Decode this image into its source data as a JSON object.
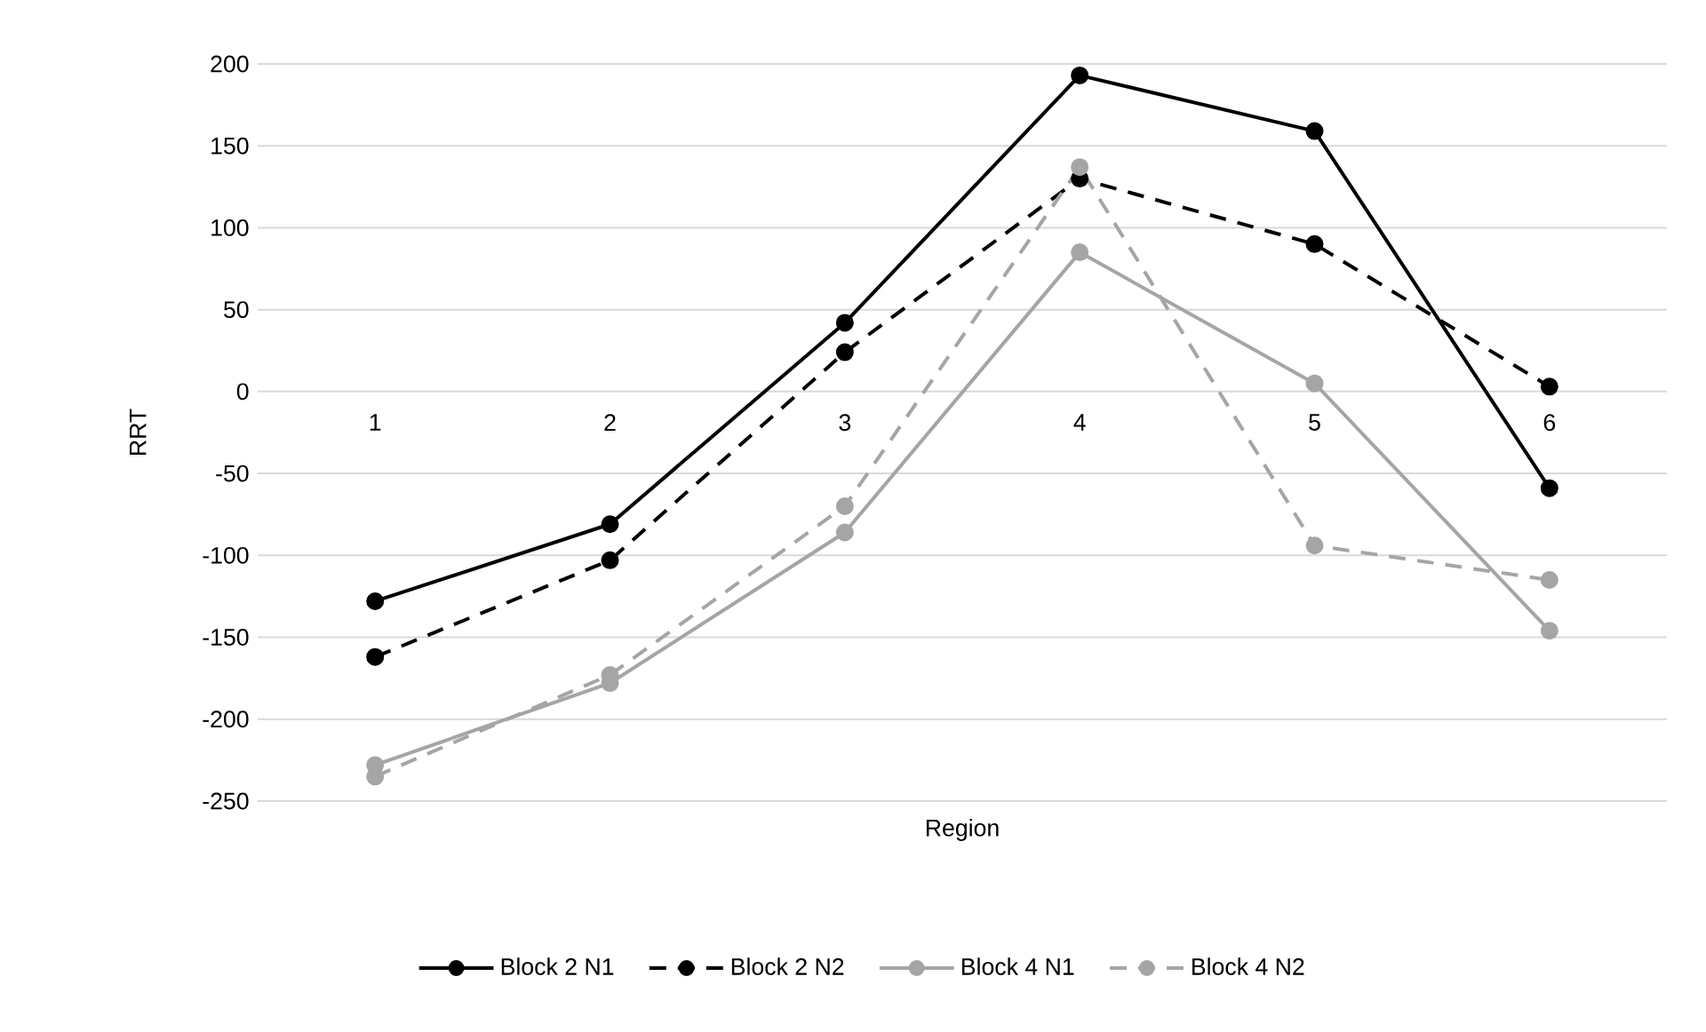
{
  "chart_data": {
    "type": "line",
    "xlabel": "Region",
    "ylabel": "RRT",
    "categories": [
      "1",
      "2",
      "3",
      "4",
      "5",
      "6"
    ],
    "series": [
      {
        "name": "Block 2 N1",
        "color": "#000000",
        "line_style": "solid",
        "values": [
          -128,
          -81,
          42,
          193,
          159,
          -59
        ]
      },
      {
        "name": "Block 2 N2",
        "color": "#000000",
        "line_style": "dashed",
        "values": [
          -162,
          -103,
          24,
          130,
          90,
          3
        ]
      },
      {
        "name": "Block 4 N1",
        "color": "#a5a5a5",
        "line_style": "solid",
        "values": [
          -228,
          -178,
          -86,
          85,
          5,
          -146
        ]
      },
      {
        "name": "Block 4 N2",
        "color": "#a5a5a5",
        "line_style": "dashed",
        "values": [
          -235,
          -173,
          -70,
          137,
          -94,
          -115
        ]
      }
    ],
    "ylim": [
      -250,
      200
    ],
    "yticks": [
      -250,
      -200,
      -150,
      -100,
      -50,
      0,
      50,
      100,
      150,
      200
    ],
    "grid": "y",
    "legend": "bottom",
    "marker": "circle"
  }
}
